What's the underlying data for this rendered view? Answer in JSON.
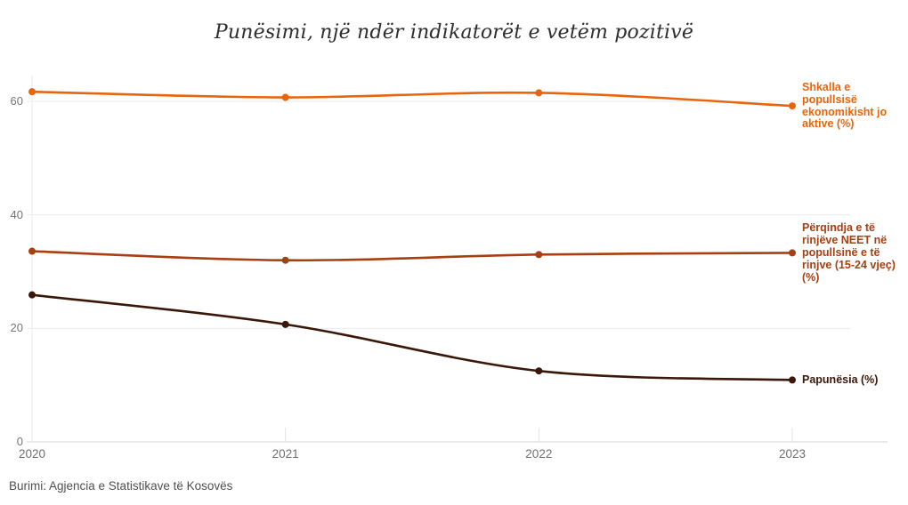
{
  "chart": {
    "title": "Punësimi, një ndër indikatorët e vetëm pozitivë",
    "source": "Burimi: Agjencia e Statistikave të Kosovës"
  },
  "chart_data": {
    "type": "line",
    "title": "Punësimi, një ndër indikatorët e vetëm pozitivë",
    "x_categories": [
      "2020",
      "2021",
      "2022",
      "2023"
    ],
    "series": [
      {
        "name": "Shkalla e popullsisë ekonomikisht jo aktive (%)",
        "label_lines": [
          "Shkalla e",
          "popullsisë",
          "ekonomikisht jo",
          "aktive (%)"
        ],
        "color": "#e8650d",
        "values": [
          61.7,
          60.7,
          61.5,
          59.2
        ]
      },
      {
        "name": "Përqindja e të rinjëve NEET në popullsinë e të rinjve (15-24 vjeç) (%)",
        "label_lines": [
          "Përqindja e të",
          "rinjëve NEET në",
          "popullsinë e të",
          "rinjve (15-24 vjeç)",
          "(%)"
        ],
        "color": "#a63f11",
        "values": [
          33.6,
          32.0,
          33.0,
          33.3
        ]
      },
      {
        "name": "Papunësia (%)",
        "label_lines": [
          "Papunësia (%)"
        ],
        "color": "#3a1708",
        "values": [
          25.9,
          20.7,
          12.5,
          10.9
        ]
      }
    ],
    "yticks": [
      0,
      20,
      40,
      60
    ],
    "ylim": [
      0,
      64
    ],
    "grid": "horizontal",
    "legend_position": "right-edge-line-labels",
    "xlabel": "",
    "ylabel": "",
    "source": "Burimi: Agjencia e Statistikave të Kosovës"
  },
  "colors": {
    "gridline": "#ebebeb",
    "baseline": "#d6d6d6",
    "tick": "#e3e3e3",
    "axis_text": "#767676",
    "title_text": "#2e2e2e",
    "source_text": "#4f4f4f"
  }
}
